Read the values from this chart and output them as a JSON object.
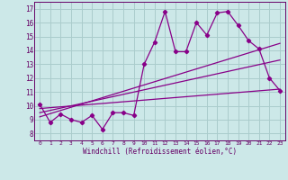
{
  "xlabel": "Windchill (Refroidissement éolien,°C)",
  "background_color": "#cce8e8",
  "grid_color": "#aacccc",
  "line_color": "#880088",
  "text_color": "#660066",
  "xlim": [
    -0.5,
    23.5
  ],
  "ylim": [
    7.5,
    17.5
  ],
  "xticks": [
    0,
    1,
    2,
    3,
    4,
    5,
    6,
    7,
    8,
    9,
    10,
    11,
    12,
    13,
    14,
    15,
    16,
    17,
    18,
    19,
    20,
    21,
    22,
    23
  ],
  "yticks": [
    8,
    9,
    10,
    11,
    12,
    13,
    14,
    15,
    16,
    17
  ],
  "series1_x": [
    0,
    1,
    2,
    3,
    4,
    5,
    6,
    7,
    8,
    9,
    10,
    11,
    12,
    13,
    14,
    15,
    16,
    17,
    18,
    19,
    20,
    21,
    22,
    23
  ],
  "series1_y": [
    10.1,
    8.8,
    9.4,
    9.0,
    8.8,
    9.3,
    8.3,
    9.5,
    9.5,
    9.3,
    13.0,
    14.6,
    16.8,
    13.9,
    13.9,
    16.0,
    15.1,
    16.7,
    16.8,
    15.8,
    14.7,
    14.1,
    12.0,
    11.1
  ],
  "series2_x": [
    0,
    23
  ],
  "series2_y": [
    9.2,
    14.5
  ],
  "series3_x": [
    0,
    23
  ],
  "series3_y": [
    9.5,
    13.3
  ],
  "series4_x": [
    0,
    23
  ],
  "series4_y": [
    9.8,
    11.2
  ]
}
